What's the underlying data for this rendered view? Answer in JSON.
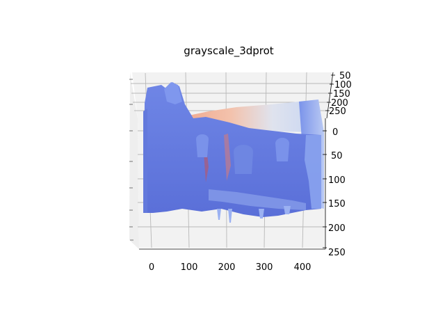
{
  "chart_data": {
    "type": "surface3d",
    "title": "grayscale_3dprot",
    "xlabel": "",
    "ylabel": "",
    "zlabel": "",
    "x_ticks": [
      "0",
      "100",
      "200",
      "300",
      "400"
    ],
    "y_ticks": [
      "0",
      "50",
      "100",
      "150",
      "200",
      "250"
    ],
    "z_ticks": [
      "50",
      "100",
      "150",
      "200",
      "250"
    ],
    "xlim": [
      -30,
      460
    ],
    "ylim": [
      0,
      250
    ],
    "zlim": [
      50,
      250
    ],
    "colormap": "coolwarm",
    "colors": {
      "low": "#5a6fd8",
      "mid": "#dcdde2",
      "high": "#f4a582",
      "pane": "#f2f2f2",
      "grid": "#b8b8b8"
    },
    "grid": true
  }
}
